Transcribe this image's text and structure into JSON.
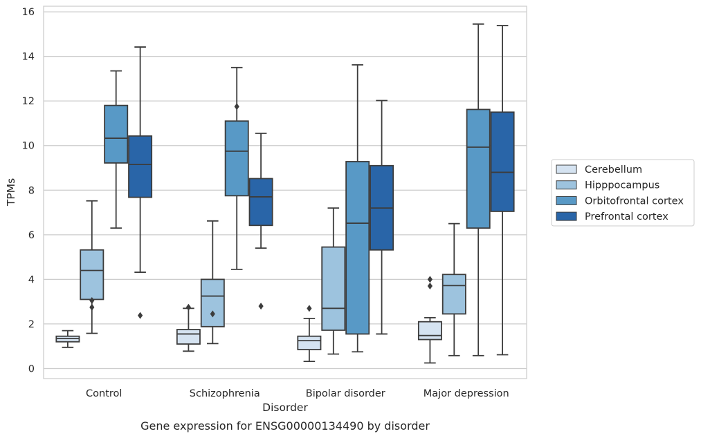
{
  "chart_data": {
    "type": "box",
    "xlabel": "Disorder",
    "ylabel": "TPMs",
    "caption": "Gene expression for ENSG00000134490 by disorder",
    "ylim": [
      -0.45,
      16.25
    ],
    "yticks": [
      "0",
      "2",
      "4",
      "6",
      "8",
      "10",
      "12",
      "14",
      "16"
    ],
    "grid": "horizontal",
    "legend_position": "right",
    "categories": [
      "Control",
      "Schizophrenia",
      "Bipolar disorder",
      "Major depression"
    ],
    "series": [
      {
        "name": "Cerebellum",
        "color": "#d5e3f1",
        "boxes": [
          {
            "whisker_low": 0.95,
            "q1": 1.2,
            "median": 1.35,
            "q3": 1.45,
            "whisker_high": 1.7,
            "outliers": []
          },
          {
            "whisker_low": 0.78,
            "q1": 1.1,
            "median": 1.55,
            "q3": 1.75,
            "whisker_high": 2.7,
            "outliers": [
              2.75
            ]
          },
          {
            "whisker_low": 0.32,
            "q1": 0.85,
            "median": 1.25,
            "q3": 1.45,
            "whisker_high": 2.25,
            "outliers": [
              2.7
            ]
          },
          {
            "whisker_low": 0.25,
            "q1": 1.3,
            "median": 1.48,
            "q3": 2.1,
            "whisker_high": 2.28,
            "outliers": [
              3.7,
              4.0
            ]
          }
        ]
      },
      {
        "name": "Hipppocampus",
        "color": "#9dc3de",
        "boxes": [
          {
            "whisker_low": 1.58,
            "q1": 3.1,
            "median": 4.4,
            "q3": 5.32,
            "whisker_high": 7.52,
            "outliers": [
              2.75,
              3.05
            ]
          },
          {
            "whisker_low": 1.12,
            "q1": 1.88,
            "median": 3.25,
            "q3": 4.0,
            "whisker_high": 6.62,
            "outliers": [
              2.45
            ]
          },
          {
            "whisker_low": 0.65,
            "q1": 1.72,
            "median": 2.7,
            "q3": 5.45,
            "whisker_high": 7.2,
            "outliers": []
          },
          {
            "whisker_low": 0.58,
            "q1": 2.45,
            "median": 3.72,
            "q3": 4.22,
            "whisker_high": 6.5,
            "outliers": []
          }
        ]
      },
      {
        "name": "Orbitofrontal cortex",
        "color": "#5899c6",
        "boxes": [
          {
            "whisker_low": 6.3,
            "q1": 9.22,
            "median": 10.33,
            "q3": 11.8,
            "whisker_high": 13.35,
            "outliers": []
          },
          {
            "whisker_low": 4.45,
            "q1": 7.75,
            "median": 9.75,
            "q3": 11.1,
            "whisker_high": 13.5,
            "outliers": [
              11.75
            ]
          },
          {
            "whisker_low": 0.75,
            "q1": 1.55,
            "median": 6.52,
            "q3": 9.28,
            "whisker_high": 13.62,
            "outliers": []
          },
          {
            "whisker_low": 0.58,
            "q1": 6.3,
            "median": 9.93,
            "q3": 11.62,
            "whisker_high": 15.45,
            "outliers": []
          }
        ]
      },
      {
        "name": "Prefrontal cortex",
        "color": "#2965a8",
        "boxes": [
          {
            "whisker_low": 4.32,
            "q1": 7.68,
            "median": 9.15,
            "q3": 10.43,
            "whisker_high": 14.42,
            "outliers": [
              2.38
            ]
          },
          {
            "whisker_low": 5.4,
            "q1": 6.42,
            "median": 7.7,
            "q3": 8.52,
            "whisker_high": 10.55,
            "outliers": [
              2.8
            ]
          },
          {
            "whisker_low": 1.55,
            "q1": 5.32,
            "median": 7.2,
            "q3": 9.1,
            "whisker_high": 12.02,
            "outliers": []
          },
          {
            "whisker_low": 0.62,
            "q1": 7.05,
            "median": 8.8,
            "q3": 11.5,
            "whisker_high": 15.38,
            "outliers": []
          }
        ]
      }
    ]
  }
}
